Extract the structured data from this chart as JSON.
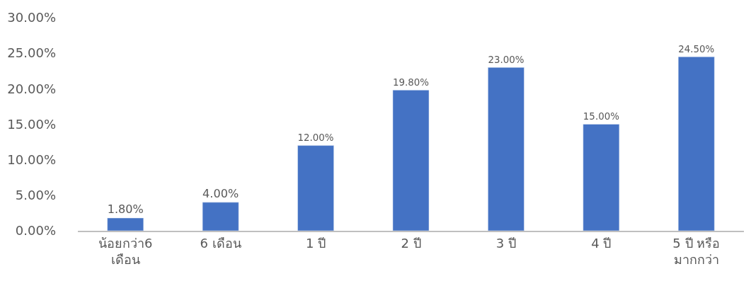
{
  "chart_data": {
    "type": "bar",
    "categories": [
      "น้อยกว่า6 เดือน",
      "6 เดือน",
      "1 ปี",
      "2 ปี",
      "3 ปี",
      "4 ปี",
      "5 ปี หรือ มากกว่า"
    ],
    "values": [
      1.8,
      4.0,
      12.0,
      19.8,
      23.0,
      15.0,
      24.5
    ],
    "value_labels": [
      "1.80%",
      "4.00%",
      "12.00%",
      "19.80%",
      "23.00%",
      "15.00%",
      "24.50%"
    ],
    "color": "#4472c4",
    "ylim": [
      0,
      30
    ],
    "yticks": [
      {
        "value": 0,
        "label": "0.00%"
      },
      {
        "value": 5,
        "label": "5.00%"
      },
      {
        "value": 10,
        "label": "10.00%"
      },
      {
        "value": 15,
        "label": "15.00%"
      },
      {
        "value": 20,
        "label": "20.00%"
      },
      {
        "value": 25,
        "label": "25.00%"
      },
      {
        "value": 30,
        "label": "30.00%"
      }
    ],
    "legend": false
  }
}
